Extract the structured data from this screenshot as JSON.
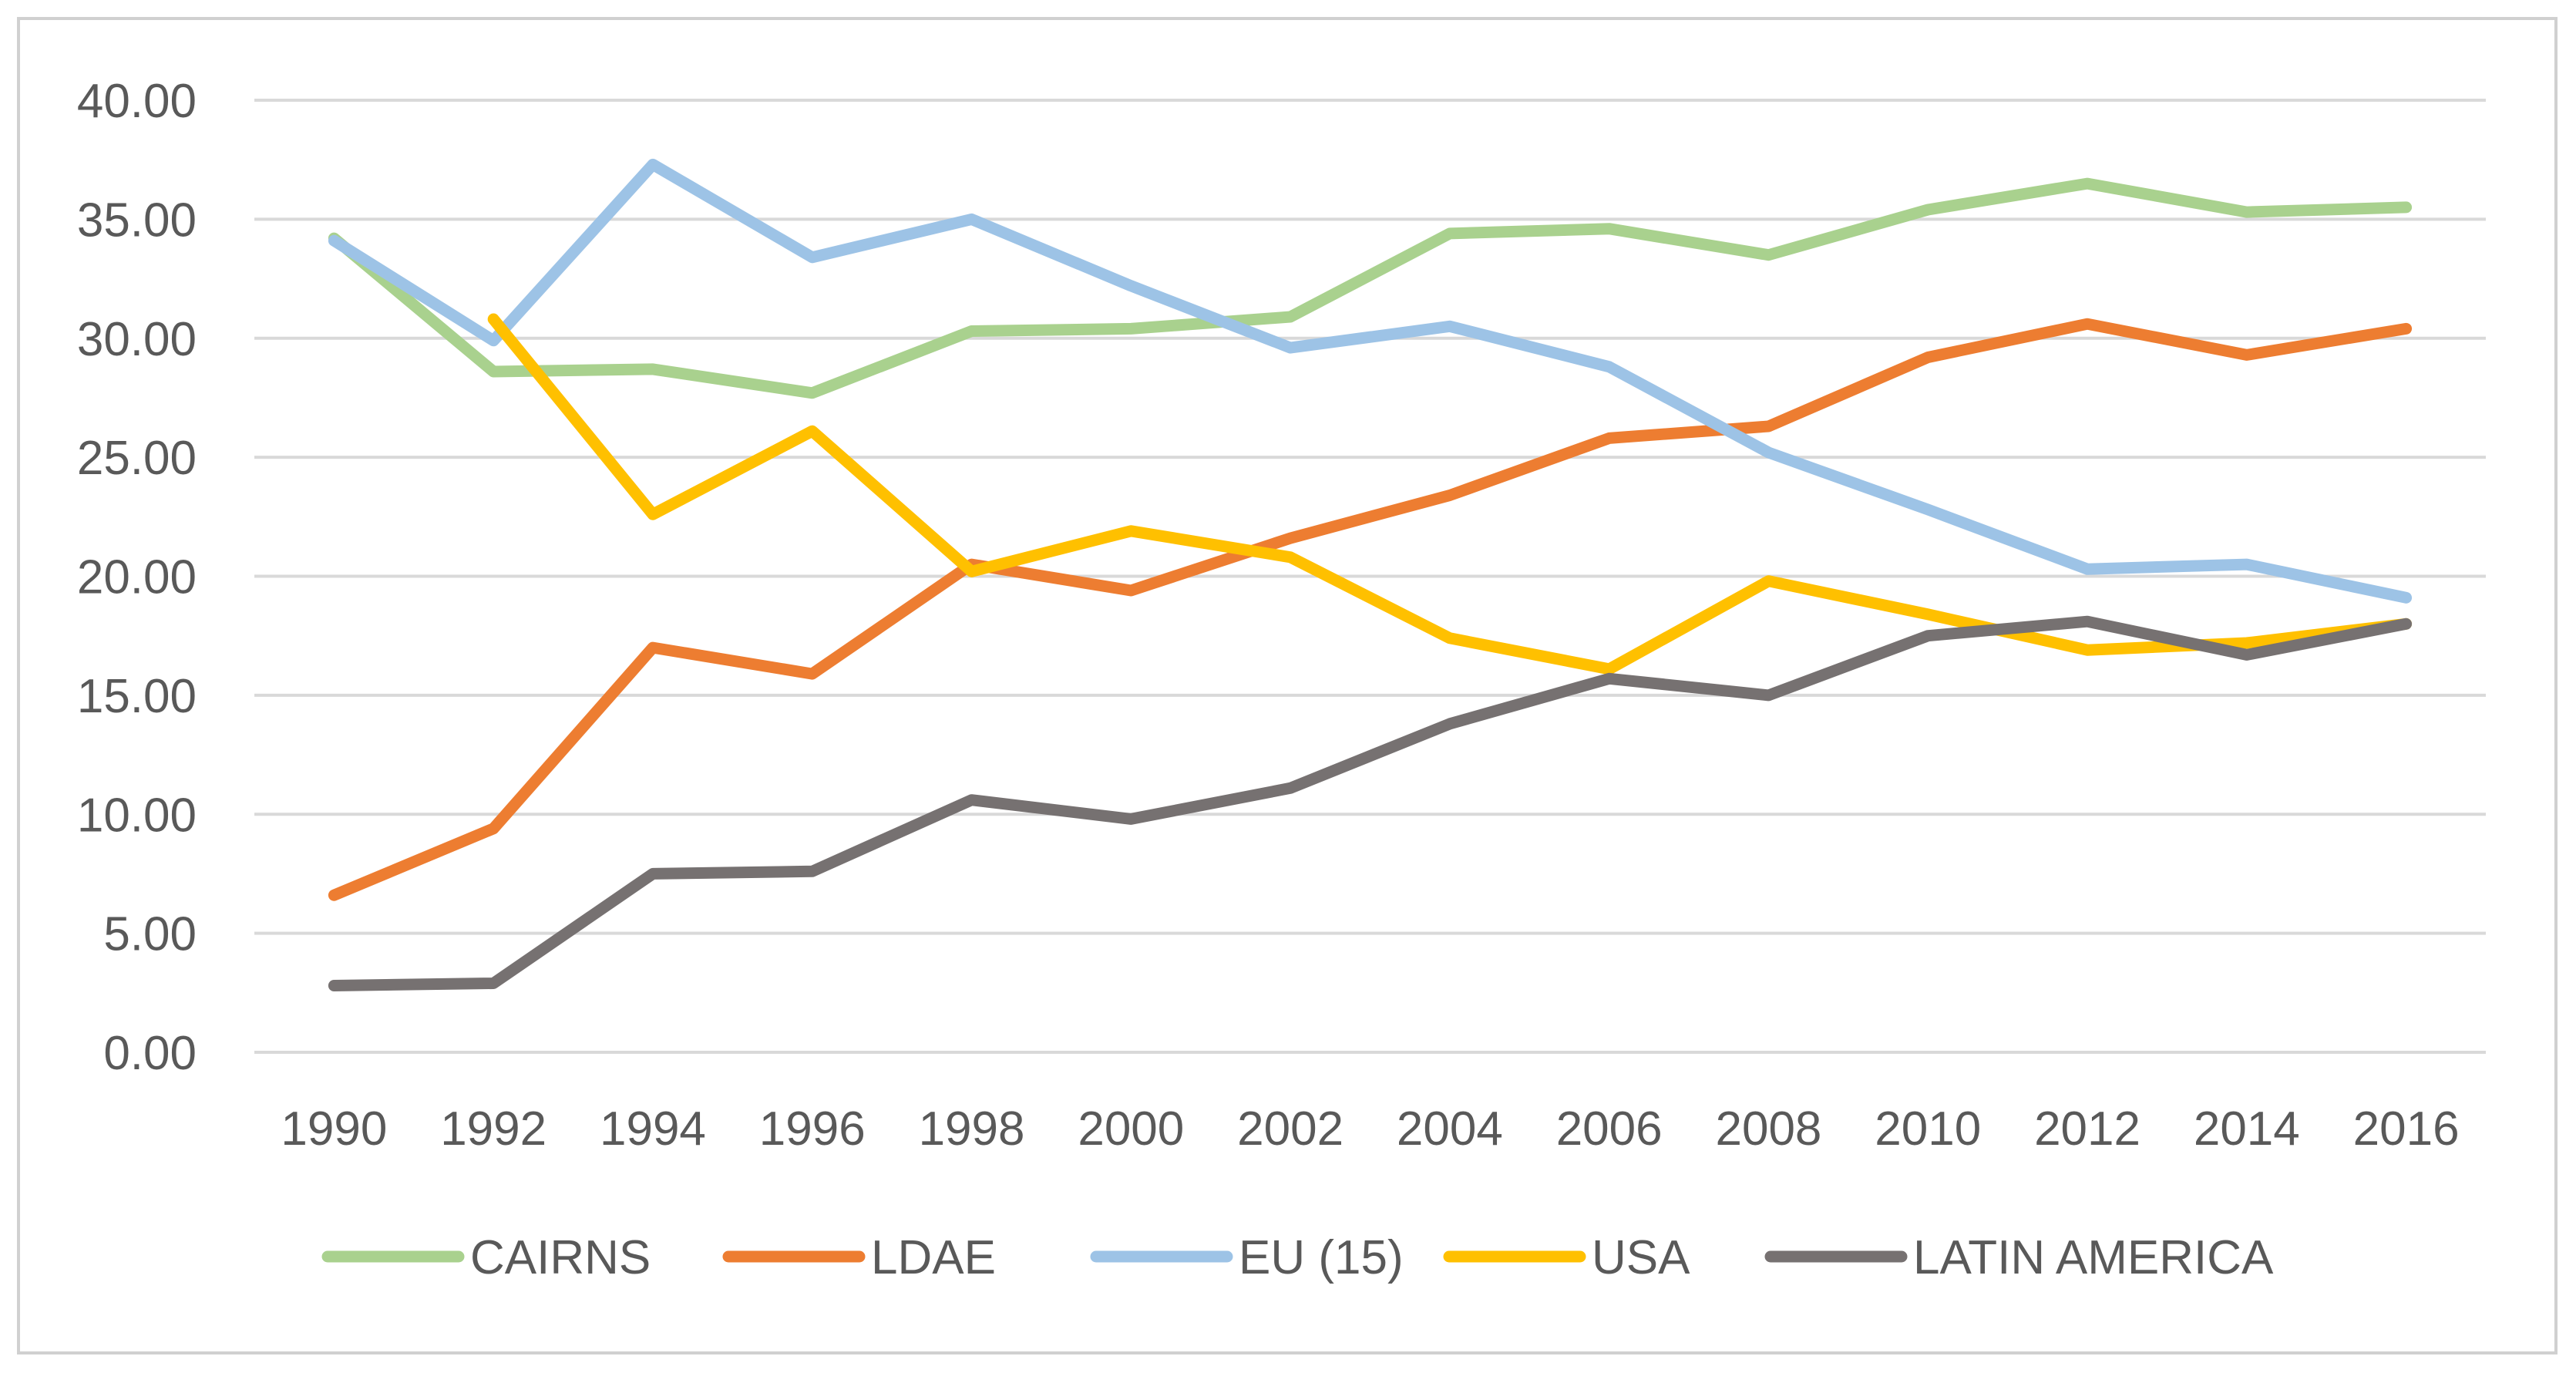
{
  "chart_data": {
    "type": "line",
    "title": "",
    "xlabel": "",
    "ylabel": "",
    "categories": [
      "1990",
      "1992",
      "1994",
      "1996",
      "1998",
      "2000",
      "2002",
      "2004",
      "2006",
      "2008",
      "2010",
      "2012",
      "2014",
      "2016"
    ],
    "y_tick_labels": [
      "0.00",
      "5.00",
      "10.00",
      "15.00",
      "20.00",
      "25.00",
      "30.00",
      "35.00",
      "40.00"
    ],
    "ylim": [
      0,
      40
    ],
    "grid": "horizontal",
    "legend_position": "bottom",
    "series": [
      {
        "name": "CAIRNS",
        "color": "#a9d18e",
        "values": [
          34.2,
          28.6,
          28.7,
          27.7,
          30.3,
          30.4,
          30.9,
          34.4,
          34.6,
          33.5,
          35.4,
          36.5,
          35.3,
          35.5
        ]
      },
      {
        "name": "LDAE",
        "color": "#ed7d31",
        "values": [
          6.6,
          9.4,
          17.0,
          15.9,
          20.5,
          19.4,
          21.6,
          23.4,
          25.8,
          26.3,
          29.2,
          30.6,
          29.3,
          30.4
        ]
      },
      {
        "name": "EU (15)",
        "color": "#9dc3e6",
        "values": [
          34.1,
          29.9,
          37.3,
          33.4,
          35.0,
          32.2,
          29.6,
          30.5,
          28.8,
          25.2,
          22.8,
          20.3,
          20.5,
          19.1
        ]
      },
      {
        "name": "USA",
        "color": "#ffc000",
        "values": [
          null,
          30.8,
          22.6,
          26.1,
          20.2,
          21.9,
          20.8,
          17.4,
          16.1,
          19.8,
          18.4,
          16.9,
          17.2,
          18.0
        ]
      },
      {
        "name": "LATIN AMERICA",
        "color": "#767171",
        "values": [
          2.8,
          2.9,
          7.5,
          7.6,
          10.6,
          9.8,
          11.1,
          13.8,
          15.7,
          15.0,
          17.5,
          18.1,
          16.7,
          18.0
        ]
      }
    ]
  }
}
